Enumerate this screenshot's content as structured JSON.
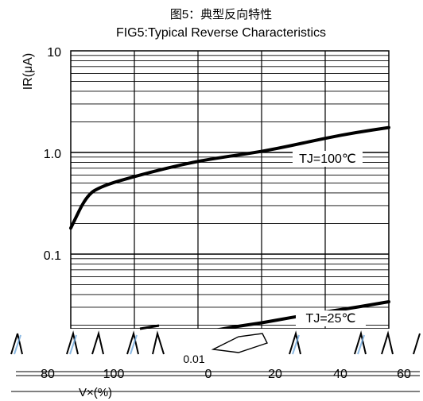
{
  "chart_data": {
    "type": "line",
    "title_cn": "图5：典型反向特性",
    "title": "FIG5:Typical Reverse Characteristics",
    "ylabel": "IR(μA)",
    "xlabel": "V×(%)",
    "yscale": "log",
    "ylim": [
      0.01,
      10
    ],
    "y_ticks": [
      "10",
      "1.0",
      "0.1",
      "0.01"
    ],
    "x_ticks_printed": [
      "80",
      "100",
      "0",
      "20",
      "40",
      "60"
    ],
    "grid": true,
    "series": [
      {
        "name": "TJ=100℃",
        "x": [
          0,
          5,
          10,
          20,
          30,
          40,
          50,
          60,
          70,
          80,
          90,
          100
        ],
        "values": [
          0.18,
          0.38,
          0.47,
          0.58,
          0.7,
          0.82,
          0.92,
          1.02,
          1.18,
          1.38,
          1.58,
          1.76
        ]
      },
      {
        "name": "TJ=25℃",
        "x": [
          20,
          30,
          40,
          50,
          60,
          70,
          80,
          90,
          100
        ],
        "values": [
          0.012,
          0.0145,
          0.0165,
          0.019,
          0.021,
          0.024,
          0.027,
          0.03,
          0.034
        ]
      }
    ],
    "colors": {
      "line": "#000000",
      "grid": "#000000",
      "background": "#ffffff"
    }
  }
}
